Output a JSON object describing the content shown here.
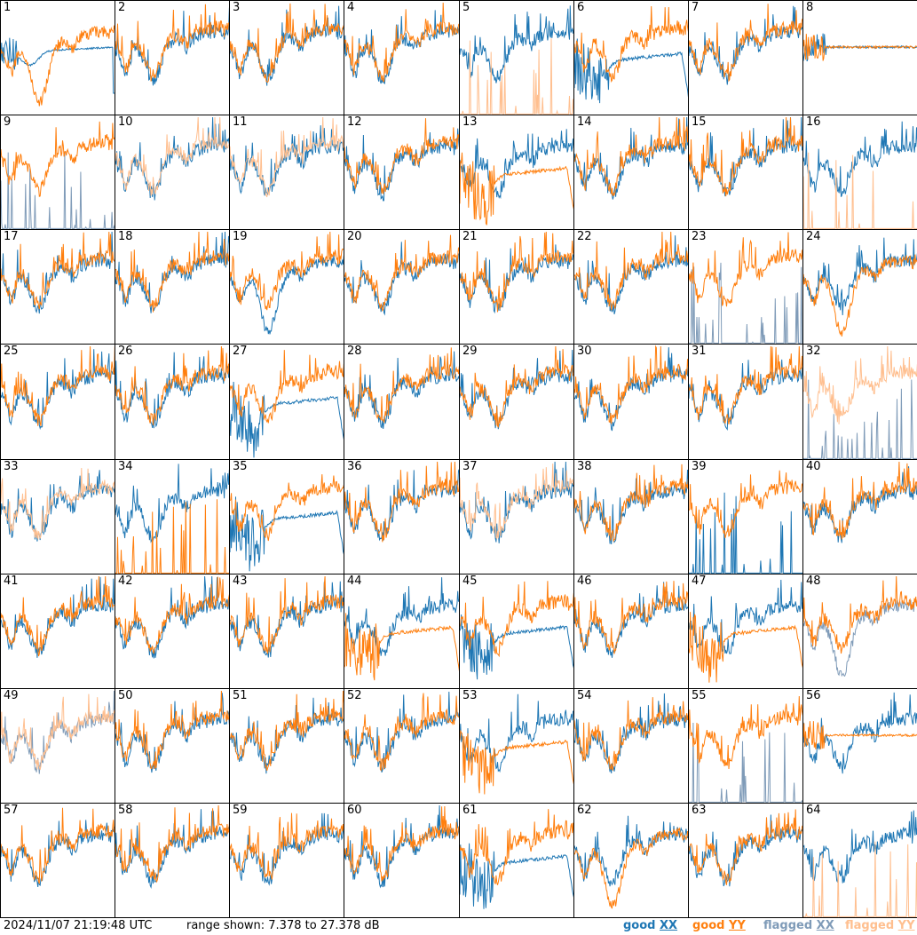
{
  "chart_data": {
    "type": "line",
    "panel_count": 64,
    "panel_labels": [
      "1",
      "2",
      "3",
      "4",
      "5",
      "6",
      "7",
      "8",
      "9",
      "10",
      "11",
      "12",
      "13",
      "14",
      "15",
      "16",
      "17",
      "18",
      "19",
      "20",
      "21",
      "22",
      "23",
      "24",
      "25",
      "26",
      "27",
      "28",
      "29",
      "30",
      "31",
      "32",
      "33",
      "34",
      "35",
      "36",
      "37",
      "38",
      "39",
      "40",
      "41",
      "42",
      "43",
      "44",
      "45",
      "46",
      "47",
      "48",
      "49",
      "50",
      "51",
      "52",
      "53",
      "54",
      "55",
      "56",
      "57",
      "58",
      "59",
      "60",
      "61",
      "62",
      "63",
      "64"
    ],
    "ylim_db": [
      7.378,
      27.378
    ],
    "series": [
      {
        "name": "good XX",
        "color": "#1f77b4"
      },
      {
        "name": "good YY",
        "color": "#ff7f0e"
      },
      {
        "name": "flagged XX",
        "color": "#7f9bb8"
      },
      {
        "name": "flagged YY",
        "color": "#ffbf8f"
      }
    ],
    "panel_styles": {
      "1": {
        "xx": "smooth_dip",
        "yy": "deep_dip"
      },
      "5": {
        "xx": "good",
        "yy": "flag_spikes"
      },
      "6": {
        "xx": "roll_off",
        "yy": "good"
      },
      "8": {
        "xx": "flat_smooth",
        "yy": "flat_smooth"
      },
      "9": {
        "xx": "flag_spikes",
        "yy": "good"
      },
      "10": {
        "xx": "good",
        "yy": "flagged"
      },
      "11": {
        "xx": "good",
        "yy": "flagged"
      },
      "13": {
        "xx": "good",
        "yy": "roll_off"
      },
      "16": {
        "xx": "good",
        "yy": "flag_spikes"
      },
      "19": {
        "xx": "deep_dip",
        "yy": "good"
      },
      "23": {
        "xx": "flag_spikes",
        "yy": "good"
      },
      "24": {
        "xx": "good",
        "yy": "deep_dip"
      },
      "27": {
        "xx": "roll_off",
        "yy": "good"
      },
      "32": {
        "xx": "flag_spikes",
        "yy": "flagged"
      },
      "33": {
        "xx": "good",
        "yy": "flagged"
      },
      "34": {
        "xx": "good",
        "yy": "flag_spikes"
      },
      "35": {
        "xx": "roll_off",
        "yy": "good"
      },
      "37": {
        "xx": "good",
        "yy": "flagged"
      },
      "39": {
        "xx": "flag_spikes",
        "yy": "good"
      },
      "44": {
        "xx": "good",
        "yy": "roll_off"
      },
      "45": {
        "xx": "roll_off",
        "yy": "good"
      },
      "47": {
        "xx": "good",
        "yy": "roll_off"
      },
      "48": {
        "xx": "flagged_dip",
        "yy": "good"
      },
      "49": {
        "xx": "flagged",
        "yy": "flagged"
      },
      "53": {
        "xx": "good",
        "yy": "roll_off"
      },
      "55": {
        "xx": "flag_spikes",
        "yy": "good"
      },
      "56": {
        "xx": "good",
        "yy": "flat_smooth"
      },
      "61": {
        "xx": "roll_off",
        "yy": "good"
      },
      "62": {
        "xx": "good",
        "yy": "deep_dip"
      },
      "64": {
        "xx": "good",
        "yy": "flag_spikes"
      }
    }
  },
  "footer": {
    "timestamp": "2024/11/07 21:19:48 UTC",
    "range_text": "range shown: 7.378 to 27.378 dB",
    "legend": [
      {
        "prefix": "good ",
        "suffix": "XX",
        "color": "#1f77b4"
      },
      {
        "prefix": "good ",
        "suffix": "YY",
        "color": "#ff7f0e"
      },
      {
        "prefix": "flagged ",
        "suffix": "XX",
        "color": "#7f9bb8"
      },
      {
        "prefix": "flagged ",
        "suffix": "YY",
        "color": "#ffbf8f"
      }
    ]
  }
}
